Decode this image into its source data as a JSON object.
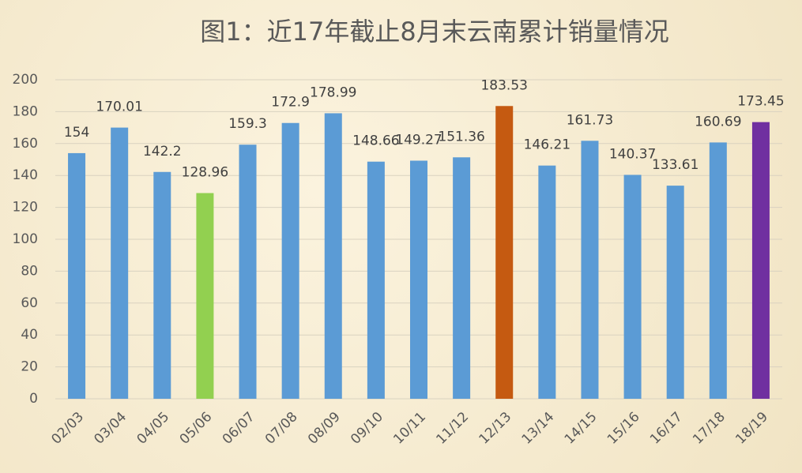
{
  "chart_data": {
    "type": "bar",
    "title": "图1：近17年截止8月末云南累计销量情况",
    "categories": [
      "02/03",
      "03/04",
      "04/05",
      "05/06",
      "06/07",
      "07/08",
      "08/09",
      "09/10",
      "10/11",
      "11/12",
      "12/13",
      "13/14",
      "14/15",
      "15/16",
      "16/17",
      "17/18",
      "18/19"
    ],
    "values": [
      154,
      170.01,
      142.2,
      128.96,
      159.3,
      172.9,
      178.99,
      148.66,
      149.27,
      151.36,
      183.53,
      146.21,
      161.73,
      140.37,
      133.61,
      160.69,
      173.45
    ],
    "colors": [
      "#5b9bd5",
      "#5b9bd5",
      "#5b9bd5",
      "#92d050",
      "#5b9bd5",
      "#5b9bd5",
      "#5b9bd5",
      "#5b9bd5",
      "#5b9bd5",
      "#5b9bd5",
      "#c55a11",
      "#5b9bd5",
      "#5b9bd5",
      "#5b9bd5",
      "#5b9bd5",
      "#5b9bd5",
      "#7030a0"
    ],
    "ylim": [
      0,
      200
    ],
    "yticks": [
      0,
      20,
      40,
      60,
      80,
      100,
      120,
      140,
      160,
      180,
      200
    ],
    "grid": true
  }
}
